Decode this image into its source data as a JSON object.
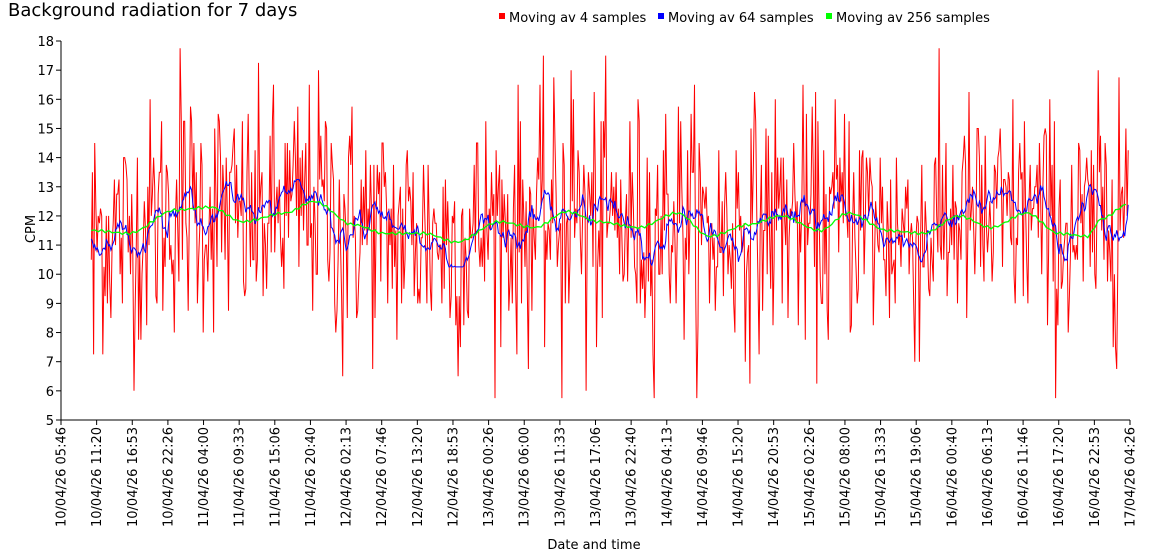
{
  "chart_data": {
    "type": "line",
    "title": "Background radiation for 7 days",
    "xlabel": "Date and time",
    "ylabel": "CPM",
    "ylim": [
      5,
      18
    ],
    "yticks": [
      5,
      6,
      7,
      8,
      9,
      10,
      11,
      12,
      13,
      14,
      15,
      16,
      17,
      18
    ],
    "xtick_labels": [
      "10/04/26 05:46",
      "10/04/26 11:20",
      "10/04/26 16:53",
      "10/04/26 22:26",
      "11/04/26 04:00",
      "11/04/26 09:33",
      "11/04/26 15:06",
      "11/04/26 20:40",
      "12/04/26 02:13",
      "12/04/26 07:46",
      "12/04/26 13:20",
      "12/04/26 18:53",
      "13/04/26 00:26",
      "13/04/26 06:00",
      "13/04/26 11:33",
      "13/04/26 17:06",
      "13/04/26 22:40",
      "14/04/26 04:13",
      "14/04/26 09:46",
      "14/04/26 15:20",
      "14/04/26 20:53",
      "15/04/26 02:26",
      "15/04/26 08:00",
      "15/04/26 13:33",
      "15/04/26 19:06",
      "16/04/26 00:40",
      "16/04/26 06:13",
      "16/04/26 11:46",
      "16/04/26 17:20",
      "16/04/26 22:53",
      "17/04/26 04:26"
    ],
    "x_domain_ticks": [
      0,
      30
    ],
    "data_x_range": [
      0.85,
      29.95
    ],
    "legend_position": "top-right",
    "series": [
      {
        "name": "Moving av 4 samples",
        "color": "#ff0000",
        "mean": 11.8,
        "min": 5.75,
        "max": 17.75,
        "noise_sd": 2.1,
        "notable_points": [
          {
            "x": 0.85,
            "y": 10.5
          },
          {
            "x": 0.92,
            "y": 7.25
          },
          {
            "x": 3.35,
            "y": 17.75
          },
          {
            "x": 7.9,
            "y": 6.5
          },
          {
            "x": 14.05,
            "y": 5.75
          },
          {
            "x": 14.75,
            "y": 6.0
          },
          {
            "x": 14.3,
            "y": 17.0
          },
          {
            "x": 29.7,
            "y": 16.75
          },
          {
            "x": 29.95,
            "y": 14.25
          }
        ]
      },
      {
        "name": "Moving av 64 samples",
        "color": "#0000ff",
        "mean": 11.8,
        "min": 10.25,
        "max": 13.25
      },
      {
        "name": "Moving av 256 samples",
        "color": "#00ff00",
        "mean": 11.8,
        "min": 11.1,
        "max": 12.55,
        "trend_points": [
          {
            "x": 0.9,
            "y": 11.5
          },
          {
            "x": 1.9,
            "y": 11.4
          },
          {
            "x": 3.2,
            "y": 12.2
          },
          {
            "x": 4.2,
            "y": 12.3
          },
          {
            "x": 5.1,
            "y": 11.8
          },
          {
            "x": 6.3,
            "y": 12.1
          },
          {
            "x": 7.1,
            "y": 12.5
          },
          {
            "x": 8.2,
            "y": 11.7
          },
          {
            "x": 9.1,
            "y": 11.4
          },
          {
            "x": 10.2,
            "y": 11.4
          },
          {
            "x": 11.1,
            "y": 11.1
          },
          {
            "x": 12.3,
            "y": 11.8
          },
          {
            "x": 13.3,
            "y": 11.6
          },
          {
            "x": 14.2,
            "y": 12.15
          },
          {
            "x": 15.1,
            "y": 11.8
          },
          {
            "x": 16.2,
            "y": 11.6
          },
          {
            "x": 17.3,
            "y": 12.1
          },
          {
            "x": 18.2,
            "y": 11.3
          },
          {
            "x": 19.3,
            "y": 11.7
          },
          {
            "x": 20.2,
            "y": 12.0
          },
          {
            "x": 21.3,
            "y": 11.5
          },
          {
            "x": 22.1,
            "y": 12.1
          },
          {
            "x": 23.2,
            "y": 11.5
          },
          {
            "x": 24.2,
            "y": 11.4
          },
          {
            "x": 25.2,
            "y": 12.0
          },
          {
            "x": 26.1,
            "y": 11.6
          },
          {
            "x": 27.1,
            "y": 12.1
          },
          {
            "x": 28.0,
            "y": 11.4
          },
          {
            "x": 28.8,
            "y": 11.3
          },
          {
            "x": 29.2,
            "y": 11.9
          },
          {
            "x": 29.95,
            "y": 12.4
          }
        ]
      }
    ]
  }
}
